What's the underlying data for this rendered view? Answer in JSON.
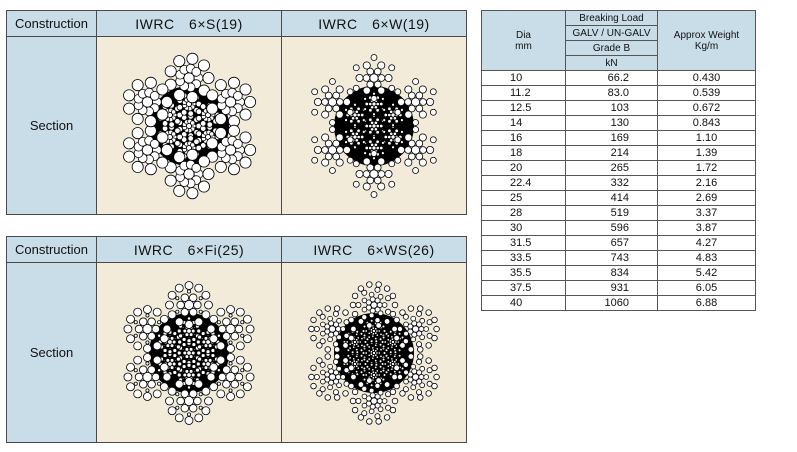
{
  "panels": [
    {
      "construction_label": "Construction",
      "section_label": "Section",
      "ropes": [
        {
          "title": "IWRC　6×S(19)",
          "pattern": "seale"
        },
        {
          "title": "IWRC　6×W(19)",
          "pattern": "warrington"
        }
      ]
    },
    {
      "construction_label": "Construction",
      "section_label": "Section",
      "ropes": [
        {
          "title": "IWRC　6×Fi(25)",
          "pattern": "filler"
        },
        {
          "title": "IWRC　6×WS(26)",
          "pattern": "warrington-seale"
        }
      ]
    }
  ],
  "spec_table": {
    "headers": {
      "dia": "Dia",
      "dia_unit": "mm",
      "breaking_load": "Breaking Load",
      "grade_type": "GALV / UN-GALV",
      "grade": "Grade B",
      "unit": "kN",
      "weight": "Approx Weight",
      "weight_unit": "Kg/m"
    },
    "rows": [
      {
        "dia": "10",
        "load": "66.2",
        "weight": "0.430"
      },
      {
        "dia": "11.2",
        "load": "83.0",
        "weight": "0.539"
      },
      {
        "dia": "12.5",
        "load": "103",
        "weight": "0.672"
      },
      {
        "dia": "14",
        "load": "130",
        "weight": "0.843"
      },
      {
        "dia": "16",
        "load": "169",
        "weight": "1.10"
      },
      {
        "dia": "18",
        "load": "214",
        "weight": "1.39"
      },
      {
        "dia": "20",
        "load": "265",
        "weight": "1.72"
      },
      {
        "dia": "22.4",
        "load": "332",
        "weight": "2.16"
      },
      {
        "dia": "25",
        "load": "414",
        "weight": "2.69"
      },
      {
        "dia": "28",
        "load": "519",
        "weight": "3.37"
      },
      {
        "dia": "30",
        "load": "596",
        "weight": "3.87"
      },
      {
        "dia": "31.5",
        "load": "657",
        "weight": "4.27"
      },
      {
        "dia": "33.5",
        "load": "743",
        "weight": "4.83"
      },
      {
        "dia": "35.5",
        "load": "834",
        "weight": "5.42"
      },
      {
        "dia": "37.5",
        "load": "931",
        "weight": "6.05"
      },
      {
        "dia": "40",
        "load": "1060",
        "weight": "6.88"
      }
    ]
  },
  "colors": {
    "header_bg": "#c9dde8",
    "image_bg": "#f2ebd9",
    "core": "#000000",
    "wire": "#ffffff"
  }
}
